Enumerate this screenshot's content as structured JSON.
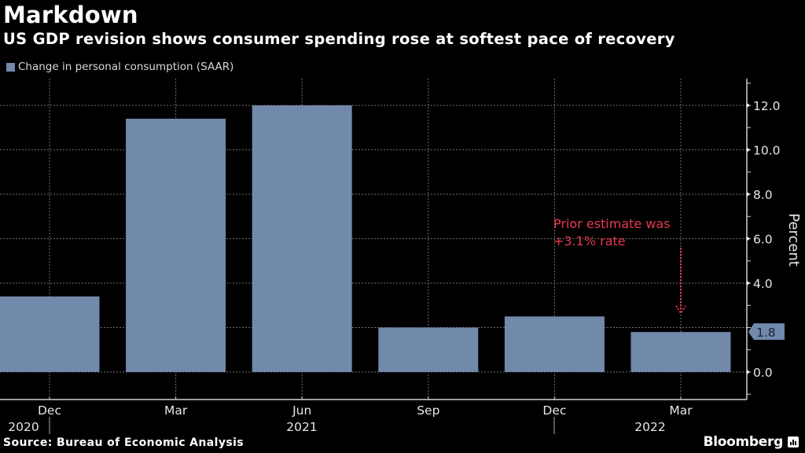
{
  "header": {
    "title": "Markdown",
    "subtitle": "US GDP revision shows consumer spending rose at softest pace of recovery"
  },
  "footer": {
    "source": "Source: Bureau of Economic Analysis",
    "brand": "Bloomberg",
    "brand_icon": "bloomberg-chart-icon"
  },
  "colors": {
    "background": "#000000",
    "bar": "#7189ab",
    "annotation": "#e8384f",
    "grid": "#8c8c8c",
    "axis": "#d0d0d0",
    "last_value_label_bg": "#7189ab",
    "last_value_label_text": "#1a2233"
  },
  "chart_data": {
    "type": "bar",
    "title": "Markdown",
    "subtitle": "US GDP revision shows consumer spending rose at softest pace of recovery",
    "legend": {
      "entries": [
        "Change in personal consumption (SAAR)"
      ],
      "placement": "top-left"
    },
    "categories": [
      "Dec 2020",
      "Mar 2021",
      "Jun 2021",
      "Sep 2021",
      "Dec 2021",
      "Mar 2022"
    ],
    "x_tick_labels": [
      "Dec",
      "Mar",
      "Jun",
      "Sep",
      "Dec",
      "Mar"
    ],
    "x_year_labels": [
      {
        "label": "2020",
        "category_index": 0
      },
      {
        "label": "2021",
        "category_index": 2
      },
      {
        "label": "2022",
        "category_index": 5
      }
    ],
    "series": [
      {
        "name": "Change in personal consumption (SAAR)",
        "values": [
          3.4,
          11.4,
          12.0,
          2.0,
          2.5,
          1.8
        ]
      }
    ],
    "xlabel": "",
    "ylabel": "Percent",
    "ylim": [
      -1.2,
      13.2
    ],
    "y_ticks": [
      0,
      2,
      4,
      6,
      8,
      10,
      12
    ],
    "y_tick_labels": [
      "0.0",
      "2.0",
      "4.0",
      "6.0",
      "8.0",
      "10.0",
      "12.0"
    ],
    "y_labeled_ticks": [
      "0.0",
      "4.0",
      "6.0",
      "8.0",
      "10.0",
      "12.0"
    ],
    "y_axis_side": "right",
    "grid": true,
    "last_value_label": "1.8",
    "annotation": {
      "lines": [
        "Prior estimate was",
        "+3.1% rate"
      ],
      "points_to_category": "Mar 2022",
      "arrow": "dotted-down-arrow"
    }
  }
}
